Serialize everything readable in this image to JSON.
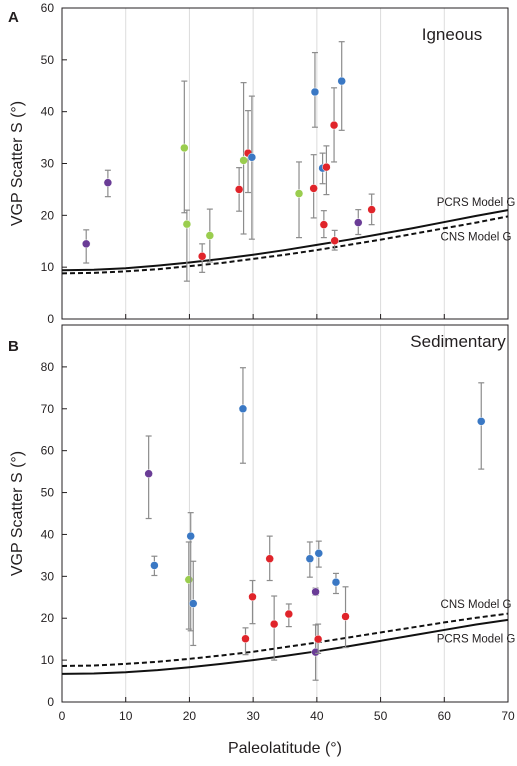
{
  "chart_data": [
    {
      "type": "scatter",
      "panel_letter": "A",
      "title": "Igneous",
      "xlabel": "Paleolatitude (°)",
      "ylabel": "VGP Scatter S (°)",
      "xlim": [
        0,
        70
      ],
      "ylim": [
        0,
        60
      ],
      "xticks": [
        0,
        10,
        20,
        30,
        40,
        50,
        60,
        70
      ],
      "yticks": [
        0,
        10,
        20,
        30,
        40,
        50,
        60
      ],
      "grid": "vertical",
      "colors": {
        "blue": "#3a78c4",
        "red": "#e0242a",
        "green": "#9acd4e",
        "purple": "#6a3c96",
        "errorbar": "#8c8c8c"
      },
      "points": [
        {
          "x": 3.8,
          "y": 14.5,
          "ylo": 10.8,
          "yhi": 17.2,
          "color": "purple"
        },
        {
          "x": 7.2,
          "y": 26.3,
          "ylo": 23.6,
          "yhi": 28.7,
          "color": "purple"
        },
        {
          "x": 19.2,
          "y": 33.0,
          "ylo": 20.5,
          "yhi": 45.9,
          "color": "green"
        },
        {
          "x": 19.6,
          "y": 18.3,
          "ylo": 7.3,
          "yhi": 21.0,
          "color": "green"
        },
        {
          "x": 22.0,
          "y": 12.1,
          "ylo": 9.0,
          "yhi": 14.5,
          "color": "red"
        },
        {
          "x": 23.2,
          "y": 16.1,
          "ylo": 11.0,
          "yhi": 21.2,
          "color": "green"
        },
        {
          "x": 27.8,
          "y": 25.0,
          "ylo": 20.8,
          "yhi": 29.2,
          "color": "red"
        },
        {
          "x": 28.5,
          "y": 30.6,
          "ylo": 16.4,
          "yhi": 45.6,
          "color": "green"
        },
        {
          "x": 29.2,
          "y": 32.0,
          "ylo": 24.4,
          "yhi": 40.2,
          "color": "red"
        },
        {
          "x": 29.8,
          "y": 31.2,
          "ylo": 15.4,
          "yhi": 43.0,
          "color": "blue"
        },
        {
          "x": 37.2,
          "y": 24.2,
          "ylo": 15.7,
          "yhi": 30.3,
          "color": "green"
        },
        {
          "x": 39.5,
          "y": 25.2,
          "ylo": 19.5,
          "yhi": 31.7,
          "color": "red"
        },
        {
          "x": 39.7,
          "y": 43.8,
          "ylo": 37.0,
          "yhi": 51.4,
          "color": "blue"
        },
        {
          "x": 40.9,
          "y": 29.1,
          "ylo": 26.1,
          "yhi": 32.0,
          "color": "blue"
        },
        {
          "x": 41.1,
          "y": 18.2,
          "ylo": 15.7,
          "yhi": 20.9,
          "color": "red"
        },
        {
          "x": 41.5,
          "y": 29.3,
          "ylo": 24.0,
          "yhi": 33.4,
          "color": "red"
        },
        {
          "x": 42.7,
          "y": 37.4,
          "ylo": 30.3,
          "yhi": 44.6,
          "color": "red"
        },
        {
          "x": 42.8,
          "y": 15.1,
          "ylo": 13.3,
          "yhi": 17.1,
          "color": "red"
        },
        {
          "x": 43.9,
          "y": 45.9,
          "ylo": 36.4,
          "yhi": 53.5,
          "color": "blue"
        },
        {
          "x": 46.5,
          "y": 18.6,
          "ylo": 16.3,
          "yhi": 21.1,
          "color": "purple"
        },
        {
          "x": 48.6,
          "y": 21.1,
          "ylo": 18.2,
          "yhi": 24.1,
          "color": "red"
        }
      ],
      "models": [
        {
          "name": "PCRS Model G",
          "style": "solid",
          "x": [
            0,
            5,
            10,
            15,
            20,
            25,
            30,
            35,
            40,
            45,
            50,
            55,
            60,
            65,
            70
          ],
          "y": [
            9.4,
            9.5,
            9.8,
            10.3,
            10.9,
            11.6,
            12.4,
            13.3,
            14.3,
            15.3,
            16.4,
            17.5,
            18.7,
            19.9,
            21.0
          ]
        },
        {
          "name": "CNS Model G",
          "style": "dashed",
          "x": [
            0,
            5,
            10,
            15,
            20,
            25,
            30,
            35,
            40,
            45,
            50,
            55,
            60,
            65,
            70
          ],
          "y": [
            8.8,
            8.9,
            9.2,
            9.6,
            10.2,
            10.8,
            11.6,
            12.4,
            13.3,
            14.3,
            15.3,
            16.4,
            17.5,
            18.6,
            19.8
          ]
        }
      ]
    },
    {
      "type": "scatter",
      "panel_letter": "B",
      "title": "Sedimentary",
      "xlabel": "Paleolatitude (°)",
      "ylabel": "VGP Scatter S (°)",
      "xlim": [
        0,
        70
      ],
      "ylim": [
        0,
        90
      ],
      "xticks": [
        0,
        10,
        20,
        30,
        40,
        50,
        60,
        70
      ],
      "yticks": [
        0,
        10,
        20,
        30,
        40,
        50,
        60,
        70,
        80
      ],
      "grid": "vertical",
      "colors": {
        "blue": "#3a78c4",
        "red": "#e0242a",
        "green": "#9acd4e",
        "purple": "#6a3c96",
        "errorbar": "#8c8c8c"
      },
      "points": [
        {
          "x": 13.6,
          "y": 54.5,
          "ylo": 43.8,
          "yhi": 63.5,
          "color": "purple"
        },
        {
          "x": 14.5,
          "y": 32.6,
          "ylo": 30.2,
          "yhi": 34.8,
          "color": "blue"
        },
        {
          "x": 19.9,
          "y": 29.2,
          "ylo": 17.4,
          "yhi": 38.2,
          "color": "green"
        },
        {
          "x": 20.2,
          "y": 39.6,
          "ylo": 17.0,
          "yhi": 45.2,
          "color": "blue"
        },
        {
          "x": 20.6,
          "y": 23.5,
          "ylo": 13.5,
          "yhi": 33.6,
          "color": "blue"
        },
        {
          "x": 28.4,
          "y": 70.0,
          "ylo": 57.0,
          "yhi": 79.8,
          "color": "blue"
        },
        {
          "x": 28.8,
          "y": 15.1,
          "ylo": 11.3,
          "yhi": 17.7,
          "color": "red"
        },
        {
          "x": 29.9,
          "y": 25.1,
          "ylo": 18.7,
          "yhi": 29.0,
          "color": "red"
        },
        {
          "x": 32.6,
          "y": 34.2,
          "ylo": 29.0,
          "yhi": 39.6,
          "color": "red"
        },
        {
          "x": 33.3,
          "y": 18.6,
          "ylo": 10.0,
          "yhi": 25.3,
          "color": "red"
        },
        {
          "x": 35.6,
          "y": 21.0,
          "ylo": 18.0,
          "yhi": 23.4,
          "color": "red"
        },
        {
          "x": 38.9,
          "y": 34.2,
          "ylo": 29.8,
          "yhi": 38.2,
          "color": "blue"
        },
        {
          "x": 39.8,
          "y": 26.3,
          "ylo": 25.5,
          "yhi": 27.2,
          "color": "purple"
        },
        {
          "x": 39.8,
          "y": 11.9,
          "ylo": 5.2,
          "yhi": 18.4,
          "color": "purple"
        },
        {
          "x": 40.2,
          "y": 15.0,
          "ylo": 11.6,
          "yhi": 18.6,
          "color": "red"
        },
        {
          "x": 40.3,
          "y": 35.5,
          "ylo": 32.2,
          "yhi": 38.4,
          "color": "blue"
        },
        {
          "x": 43.0,
          "y": 28.6,
          "ylo": 25.9,
          "yhi": 30.7,
          "color": "blue"
        },
        {
          "x": 44.5,
          "y": 20.4,
          "ylo": 13.0,
          "yhi": 27.5,
          "color": "red"
        },
        {
          "x": 65.8,
          "y": 67.0,
          "ylo": 55.6,
          "yhi": 76.2,
          "color": "blue"
        }
      ],
      "models": [
        {
          "name": "CNS Model G",
          "style": "dashed",
          "x": [
            0,
            5,
            10,
            15,
            20,
            25,
            30,
            35,
            40,
            45,
            50,
            55,
            60,
            65,
            70
          ],
          "y": [
            8.6,
            8.7,
            9.1,
            9.6,
            10.3,
            11.1,
            12.0,
            13.1,
            14.2,
            15.4,
            16.6,
            17.8,
            19.0,
            20.1,
            21.1
          ]
        },
        {
          "name": "PCRS Model G",
          "style": "solid",
          "x": [
            0,
            5,
            10,
            15,
            20,
            25,
            30,
            35,
            40,
            45,
            50,
            55,
            60,
            65,
            70
          ],
          "y": [
            6.7,
            6.8,
            7.1,
            7.6,
            8.3,
            9.1,
            10.0,
            11.0,
            12.1,
            13.3,
            14.6,
            15.9,
            17.2,
            18.5,
            19.6
          ]
        }
      ]
    }
  ]
}
